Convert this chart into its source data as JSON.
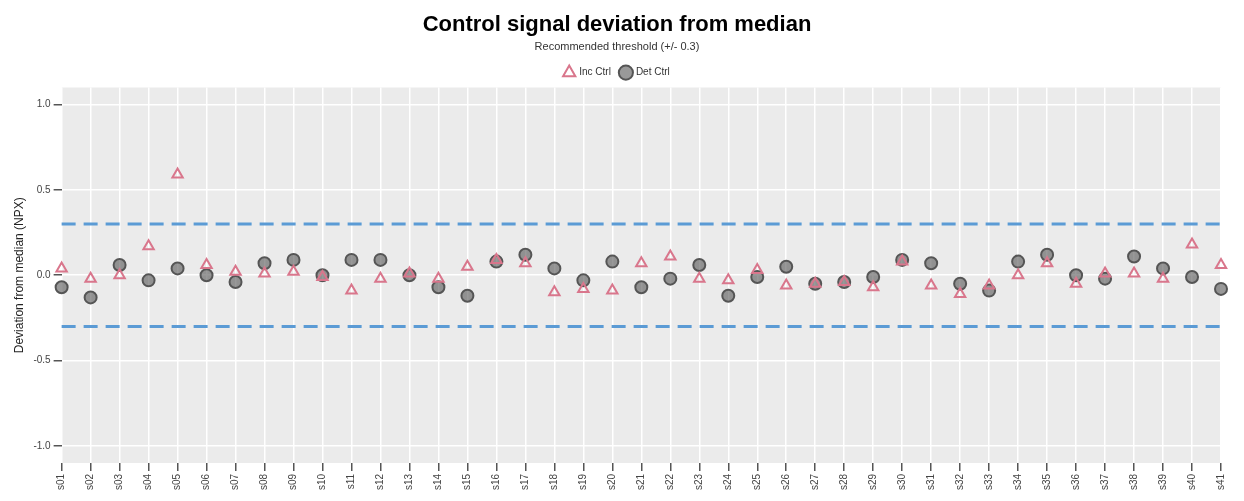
{
  "chart_data": {
    "type": "scatter",
    "title": "Control signal deviation from median",
    "subtitle": "Recommended threshold (+/- 0.3)",
    "ylabel": "Deviation from median (NPX)",
    "categories": [
      "s01",
      "s02",
      "s03",
      "s04",
      "s05",
      "s06",
      "s07",
      "s08",
      "s09",
      "s10",
      "s11",
      "s12",
      "s13",
      "s14",
      "s15",
      "s16",
      "s17",
      "s18",
      "s19",
      "s20",
      "s21",
      "s22",
      "s23",
      "s24",
      "s25",
      "s26",
      "s27",
      "s28",
      "s29",
      "s30",
      "s31",
      "s32",
      "s33",
      "s34",
      "s35",
      "s36",
      "s37",
      "s38",
      "s39",
      "s40",
      "s41"
    ],
    "series": [
      {
        "name": "Det Ctrl",
        "color": "#555555",
        "marker": "circle",
        "values": [
          -0.07,
          -0.13,
          0.06,
          -0.03,
          0.04,
          0.0,
          -0.04,
          0.07,
          0.09,
          0.0,
          0.09,
          0.09,
          0.0,
          -0.07,
          -0.12,
          0.08,
          0.12,
          0.04,
          -0.03,
          0.08,
          -0.07,
          -0.02,
          0.06,
          -0.12,
          -0.01,
          0.05,
          -0.05,
          -0.04,
          -0.01,
          0.09,
          0.07,
          -0.05,
          -0.09,
          0.08,
          0.12,
          0.0,
          -0.02,
          0.11,
          0.04,
          -0.01,
          -0.08
        ]
      },
      {
        "name": "Inc Ctrl",
        "color": "#d9768c",
        "marker": "triangle",
        "values": [
          0.04,
          -0.02,
          0.0,
          0.17,
          0.59,
          0.06,
          0.02,
          0.01,
          0.02,
          -0.01,
          -0.09,
          -0.02,
          0.01,
          -0.02,
          0.05,
          0.09,
          0.07,
          -0.1,
          -0.08,
          -0.09,
          0.07,
          0.11,
          -0.02,
          -0.03,
          0.03,
          -0.06,
          -0.05,
          -0.04,
          -0.07,
          0.08,
          -0.06,
          -0.11,
          -0.06,
          0.0,
          0.07,
          -0.05,
          0.01,
          0.01,
          -0.02,
          0.18,
          0.06
        ]
      }
    ],
    "ylim": [
      -1.1,
      1.1
    ],
    "yticks": [
      {
        "value": -1,
        "label": "-1.0"
      },
      {
        "value": -0.5,
        "label": "-0.5"
      },
      {
        "value": 0,
        "label": "0.0"
      },
      {
        "value": 0.5,
        "label": "0.5"
      },
      {
        "value": 1,
        "label": "1.0"
      }
    ],
    "ref_lines": [
      {
        "axis": "y",
        "value": 0.3,
        "color": "#5b9bd5",
        "line_style": "dashed"
      },
      {
        "axis": "y",
        "value": -0.3,
        "color": "#5b9bd5",
        "line_style": "dashed"
      }
    ],
    "grid": true,
    "legend": "top"
  }
}
